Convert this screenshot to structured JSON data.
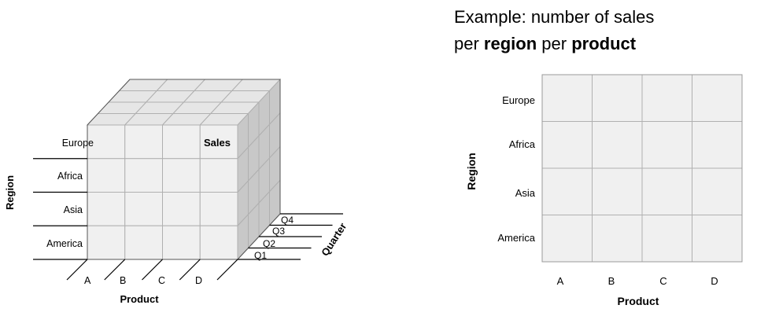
{
  "cube": {
    "regions": [
      "Europe",
      "Africa",
      "Asia",
      "America"
    ],
    "products": [
      "A",
      "B",
      "C",
      "D"
    ],
    "quarters": [
      "Q1",
      "Q2",
      "Q3",
      "Q4"
    ],
    "region_axis": "Region",
    "product_axis": "Product",
    "quarter_axis": "Quarter",
    "cell_label": "Sales"
  },
  "example": {
    "title_line1": "Example: number of sales",
    "title_line2_pre": "per ",
    "title_line2_bold1": "region",
    "title_line2_mid": " per ",
    "title_line2_bold2": "product",
    "regions": [
      "Europe",
      "Africa",
      "Asia",
      "America"
    ],
    "products": [
      "A",
      "B",
      "C",
      "D"
    ],
    "region_axis": "Region",
    "product_axis": "Product"
  },
  "colors": {
    "front_face": "#f0f0f0",
    "top_face": "#e6e6e6",
    "side_face": "#c8c8c8",
    "grid_line": "#b0b0b0",
    "outline": "#555555"
  }
}
